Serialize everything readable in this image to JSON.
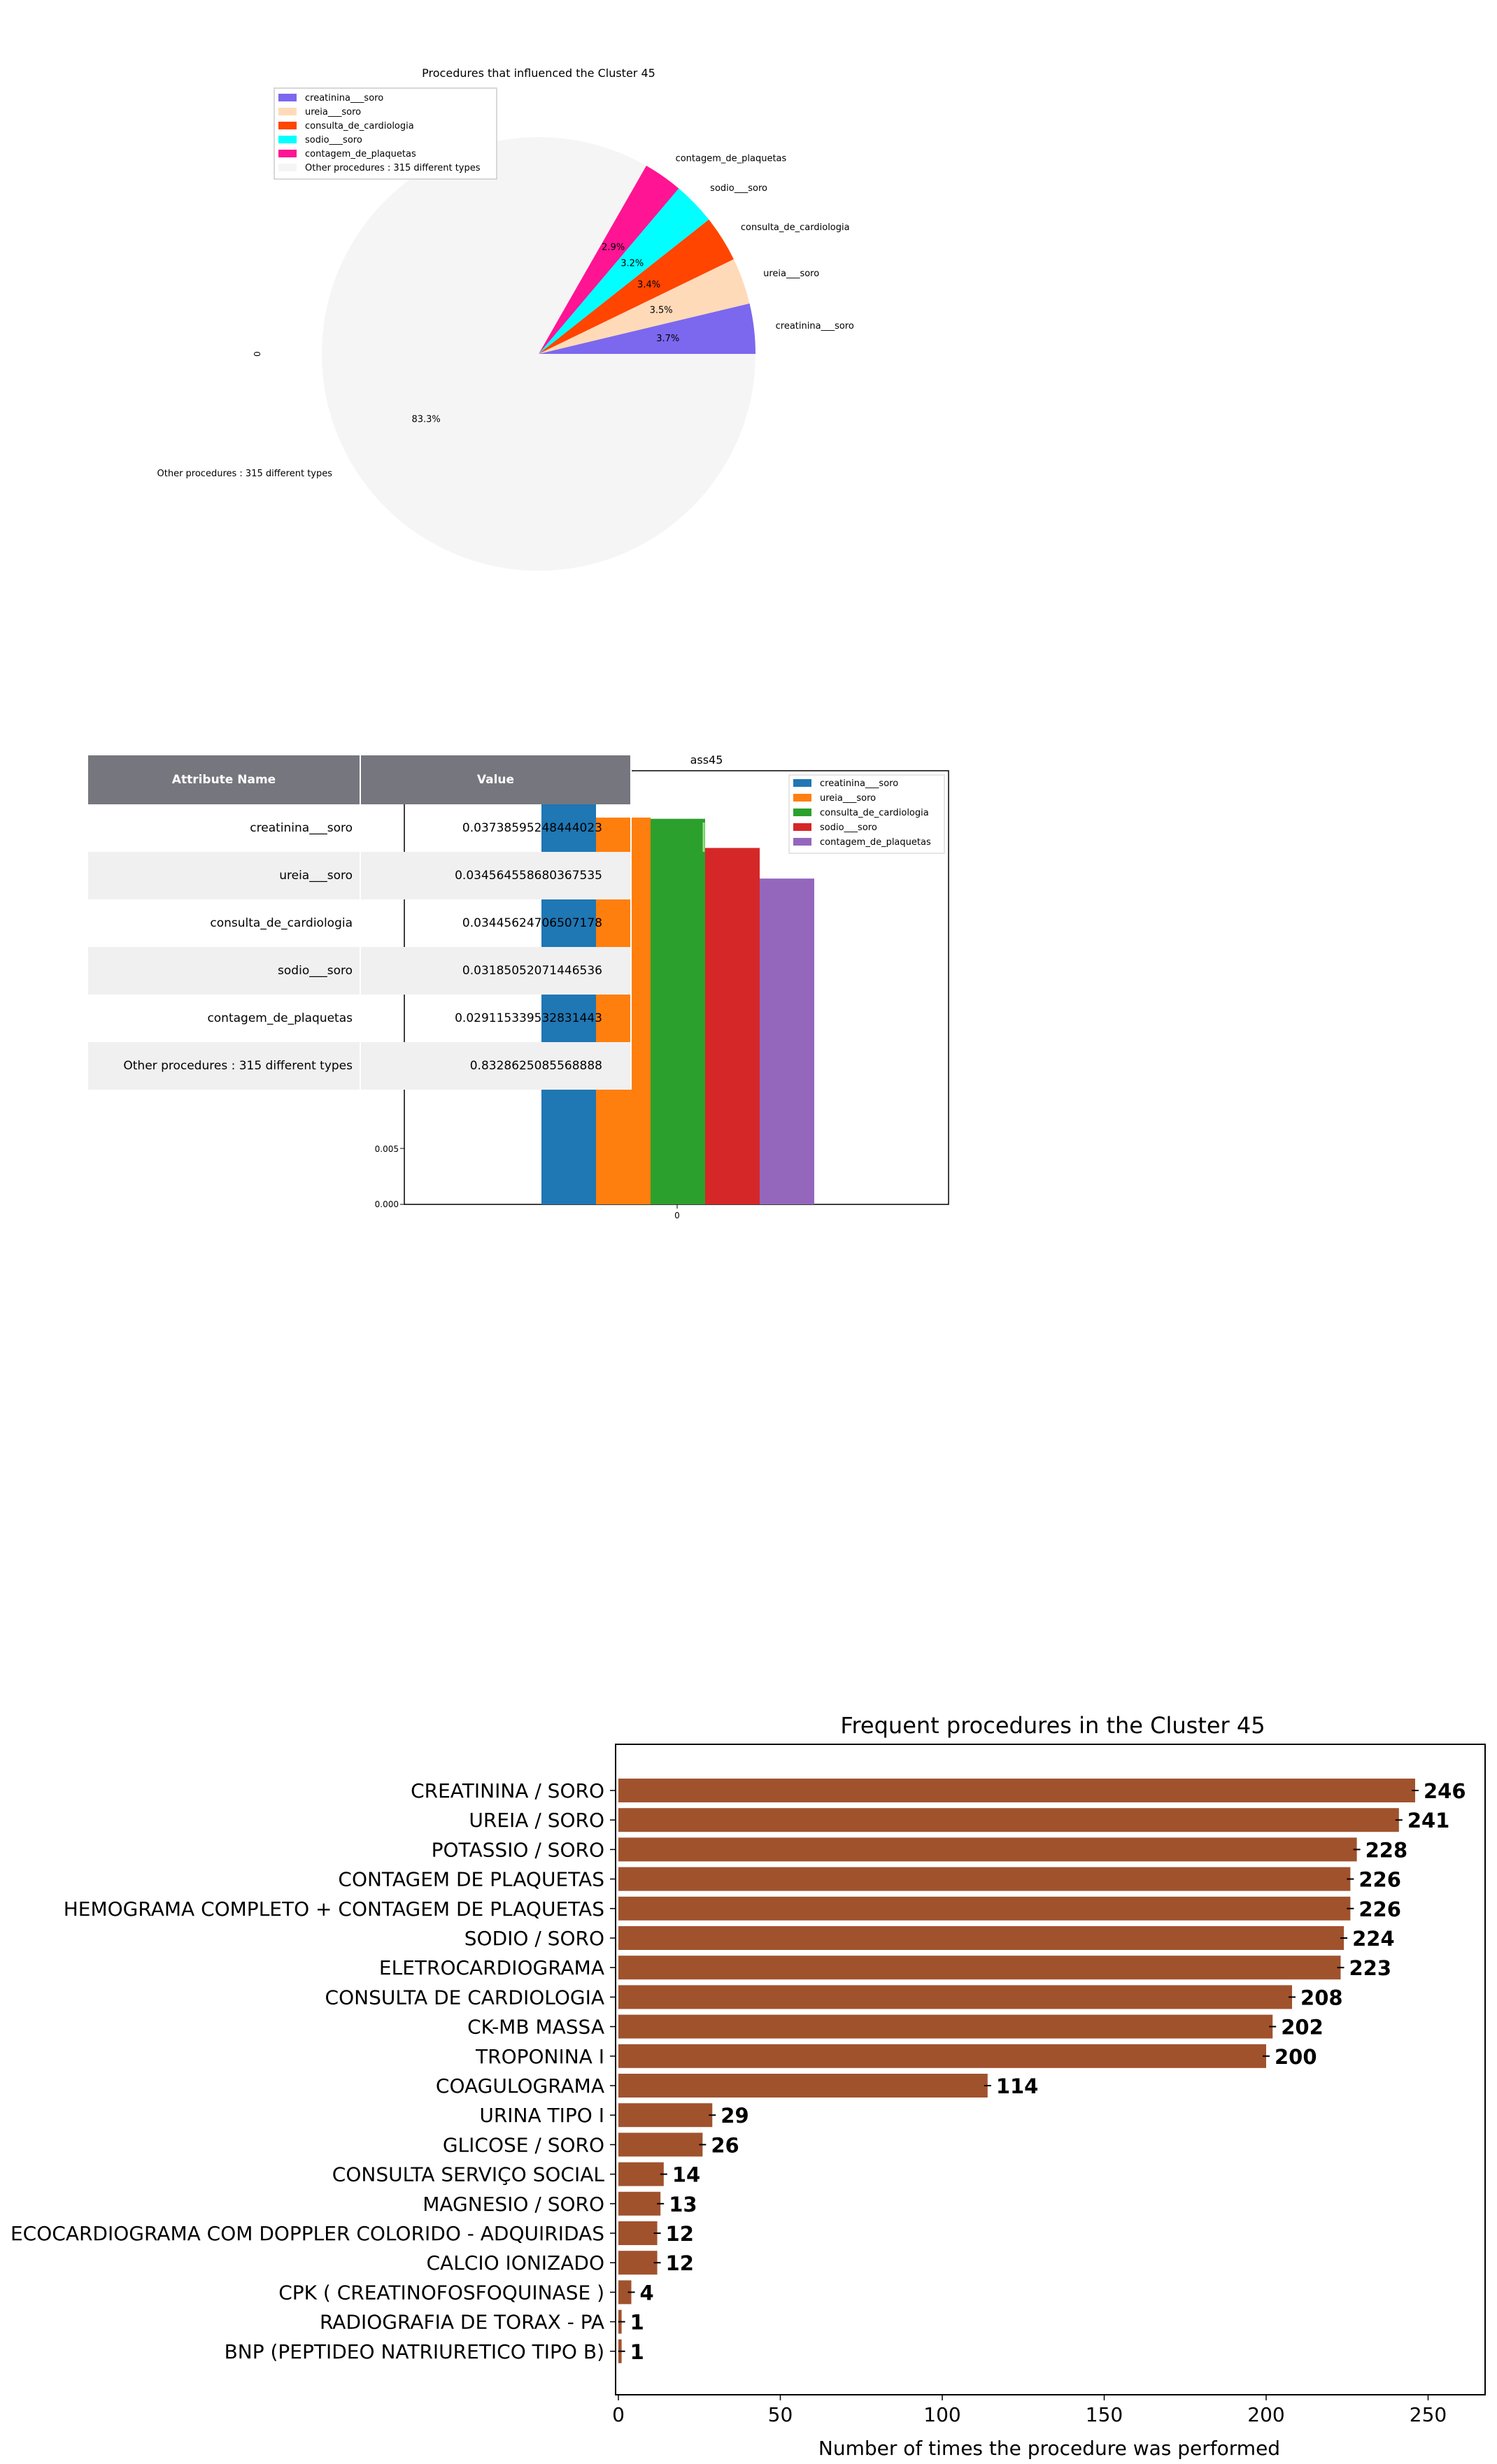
{
  "pie_chart": {
    "title": "Procedures that influenced the Cluster 45",
    "side_label": "0",
    "colors": [
      "#7b68ee",
      "#ffdab9",
      "#ff4500",
      "#00ffff",
      "#ff1493",
      "#f5f5f5"
    ],
    "legend": [
      "creatinina___soro",
      "ureia___soro",
      "consulta_de_cardiologia",
      "sodio___soro",
      "contagem_de_plaquetas",
      "Other procedures : 315 different types"
    ]
  },
  "table": {
    "headers": [
      "Attribute Name",
      "Value"
    ],
    "rows": [
      {
        "name": "creatinina___soro",
        "value": "0.03738595248444023"
      },
      {
        "name": "ureia___soro",
        "value": "0.034564558680367535"
      },
      {
        "name": "consulta_de_cardiologia",
        "value": "0.03445624706507178"
      },
      {
        "name": "sodio___soro",
        "value": "0.03185052071446536"
      },
      {
        "name": "contagem_de_plaquetas",
        "value": "0.029115339532831443"
      },
      {
        "name": "Other procedures : 315 different types",
        "value": "0.8328625085568888"
      }
    ]
  },
  "small_bar": {
    "title_fragment": "ass45",
    "x_tick": "0",
    "y_ticks": [
      "0.005",
      "0.000"
    ],
    "colors": [
      "#1f77b4",
      "#ff7f0e",
      "#2ca02c",
      "#d62728",
      "#9467bd"
    ],
    "legend": [
      "creatinina___soro",
      "ureia___soro",
      "consulta_de_cardiologia",
      "sodio___soro",
      "contagem_de_plaquetas"
    ]
  },
  "hbar": {
    "title": "Frequent procedures in the Cluster  45",
    "xlabel": "Number of times the procedure was performed",
    "x_ticks": [
      "0",
      "50",
      "100",
      "150",
      "200",
      "250"
    ],
    "bar_color": "#a0522d"
  },
  "chart_data": [
    {
      "type": "pie",
      "title": "Procedures that influenced the Cluster 45",
      "categories": [
        "creatinina___soro",
        "ureia___soro",
        "consulta_de_cardiologia",
        "sodio___soro",
        "contagem_de_plaquetas",
        "Other procedures : 315 different types"
      ],
      "values": [
        0.03738595248444023,
        0.034564558680367535,
        0.03445624706507178,
        0.03185052071446536,
        0.029115339532831443,
        0.8328625085568888
      ],
      "labels": [
        "3.7%",
        "3.5%",
        "3.4%",
        "3.2%",
        "2.9%",
        "83.3%"
      ],
      "legend_position": "top-left"
    },
    {
      "type": "bar",
      "title": "ass45",
      "categories": [
        "0"
      ],
      "series": [
        {
          "name": "creatinina___soro",
          "values": [
            0.03738595248444023
          ]
        },
        {
          "name": "ureia___soro",
          "values": [
            0.034564558680367535
          ]
        },
        {
          "name": "consulta_de_cardiologia",
          "values": [
            0.03445624706507178
          ]
        },
        {
          "name": "sodio___soro",
          "values": [
            0.03185052071446536
          ]
        },
        {
          "name": "contagem_de_plaquetas",
          "values": [
            0.029115339532831443
          ]
        }
      ],
      "legend_position": "top-right"
    },
    {
      "type": "bar",
      "orientation": "horizontal",
      "title": "Frequent procedures in the Cluster  45",
      "xlabel": "Number of times the procedure was performed",
      "xlim": [
        0,
        268
      ],
      "categories": [
        "CREATININA / SORO",
        "UREIA / SORO",
        "POTASSIO / SORO",
        "CONTAGEM DE PLAQUETAS",
        "HEMOGRAMA COMPLETO + CONTAGEM DE PLAQUETAS",
        "SODIO / SORO",
        "ELETROCARDIOGRAMA",
        "CONSULTA DE CARDIOLOGIA",
        "CK-MB  MASSA",
        "TROPONINA I",
        "COAGULOGRAMA",
        "URINA TIPO I",
        "GLICOSE / SORO",
        "CONSULTA SERVIÇO SOCIAL",
        "MAGNESIO / SORO",
        "ECOCARDIOGRAMA COM DOPPLER COLORIDO - ADQUIRIDAS",
        "CALCIO IONIZADO",
        "CPK ( CREATINOFOSFOQUINASE )",
        "RADIOGRAFIA DE TORAX - PA",
        "BNP (PEPTIDEO NATRIURETICO TIPO B)"
      ],
      "values": [
        246,
        241,
        228,
        226,
        226,
        224,
        223,
        208,
        202,
        200,
        114,
        29,
        26,
        14,
        13,
        12,
        12,
        4,
        1,
        1
      ]
    }
  ]
}
